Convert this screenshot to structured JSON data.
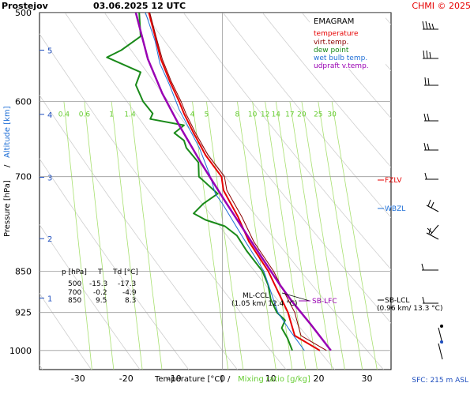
{
  "header": {
    "station": "Prostejov",
    "datetime": "03.06.2025 12 UTC",
    "credit": "CHMI © 2025"
  },
  "legend": {
    "title": "EMAGRAM",
    "items": [
      {
        "label": "temperature",
        "color": "#e60000"
      },
      {
        "label": "virt.temp.",
        "color": "#8b0000"
      },
      {
        "label": "dew point",
        "color": "#1a8a1a"
      },
      {
        "label": "wet bulb temp.",
        "color": "#1f6fd6"
      },
      {
        "label": "udpraft v.temp.",
        "color": "#9900b3"
      }
    ]
  },
  "axes": {
    "xlabel_main": "Temperature [°C]",
    "xlabel_sep": "/",
    "xlabel_mix": "Mixing ratio [g/kg]",
    "ylabel_pressure": "Pressure [hPa]",
    "ylabel_sep": "/",
    "ylabel_altitude": "Altitude [km]",
    "sfc_note": "SFC: 215 m ASL"
  },
  "table": {
    "header": [
      "p [hPa]",
      "T",
      "Td [°C]"
    ],
    "rows": [
      [
        "500",
        "-15.3",
        "-17.3"
      ],
      [
        "700",
        "-0.2",
        "-4.9"
      ],
      [
        "850",
        "9.5",
        "8.3"
      ]
    ]
  },
  "annotations": {
    "ml_ccl": "ML-CCL",
    "ml_ccl_sub": "(1.05 km/ 12.4 °C)",
    "sb_lfc": "SB-LFC",
    "sb_lcl": "SB-LCL",
    "sb_lcl_sub": "(0.96 km/ 13.3 °C)",
    "fzlv": "FZLV",
    "wbzl": "WBZL"
  },
  "chart_data": {
    "type": "line",
    "title": "EMAGRAM",
    "xlabel": "Temperature [°C]",
    "ylabel": "Pressure [hPa]",
    "xlim": [
      -38,
      35
    ],
    "ylim": [
      1040,
      500
    ],
    "y_scale": "log",
    "x_ticks": [
      -30,
      -20,
      -10,
      0,
      10,
      20,
      30
    ],
    "y_ticks": [
      500,
      600,
      700,
      850,
      925,
      1000
    ],
    "altitude_ticks": [
      {
        "km": 1,
        "p": 898
      },
      {
        "km": 2,
        "p": 795
      },
      {
        "km": 3,
        "p": 701
      },
      {
        "km": 4,
        "p": 616
      },
      {
        "km": 5,
        "p": 540
      }
    ],
    "mixing_ratio_labels": [
      "0.4",
      "0.6",
      "1",
      "1.4",
      "4",
      "5",
      "8",
      "10",
      "12",
      "14",
      "17",
      "20",
      "25",
      "30"
    ],
    "series": [
      {
        "name": "temperature",
        "color": "#e60000",
        "points": [
          [
            20.2,
            1000
          ],
          [
            15,
            970
          ],
          [
            13.6,
            925
          ],
          [
            9.5,
            850
          ],
          [
            5.5,
            800
          ],
          [
            3.2,
            760
          ],
          [
            0.2,
            720
          ],
          [
            -0.2,
            700
          ],
          [
            -3.5,
            670
          ],
          [
            -6,
            640
          ],
          [
            -8,
            615
          ],
          [
            -9,
            600
          ],
          [
            -11,
            575
          ],
          [
            -12.8,
            550
          ],
          [
            -14,
            525
          ],
          [
            -15.3,
            500
          ]
        ]
      },
      {
        "name": "virt.temp.",
        "color": "#8b0000",
        "points": [
          [
            21.6,
            1000
          ],
          [
            16.3,
            970
          ],
          [
            15,
            925
          ],
          [
            10.6,
            850
          ],
          [
            6.5,
            800
          ],
          [
            4,
            760
          ],
          [
            0.9,
            720
          ],
          [
            0.4,
            700
          ],
          [
            -3,
            670
          ],
          [
            -5.6,
            640
          ],
          [
            -7.6,
            615
          ],
          [
            -8.6,
            600
          ],
          [
            -10.7,
            575
          ],
          [
            -12.5,
            550
          ],
          [
            -13.8,
            525
          ],
          [
            -15.1,
            500
          ]
        ]
      },
      {
        "name": "dew point",
        "color": "#1a8a1a",
        "points": [
          [
            14.5,
            1000
          ],
          [
            13.5,
            975
          ],
          [
            12.3,
            955
          ],
          [
            13,
            940
          ],
          [
            11.3,
            925
          ],
          [
            10,
            900
          ],
          [
            9.5,
            875
          ],
          [
            8.3,
            850
          ],
          [
            5,
            815
          ],
          [
            3,
            790
          ],
          [
            0.5,
            775
          ],
          [
            -3.5,
            765
          ],
          [
            -6,
            755
          ],
          [
            -4,
            740
          ],
          [
            -1,
            725
          ],
          [
            -4.9,
            700
          ],
          [
            -5,
            680
          ],
          [
            -7.5,
            660
          ],
          [
            -8,
            650
          ],
          [
            -10,
            640
          ],
          [
            -8,
            630
          ],
          [
            -15,
            622
          ],
          [
            -14.5,
            615
          ],
          [
            -16.5,
            600
          ],
          [
            -18,
            580
          ],
          [
            -17,
            565
          ],
          [
            -24,
            548
          ],
          [
            -21,
            540
          ],
          [
            -17,
            525
          ],
          [
            -17.3,
            500
          ]
        ]
      },
      {
        "name": "wet bulb temp.",
        "color": "#1f6fd6",
        "points": [
          [
            17,
            1000
          ],
          [
            14,
            960
          ],
          [
            11.5,
            925
          ],
          [
            8.6,
            850
          ],
          [
            4,
            790
          ],
          [
            0,
            740
          ],
          [
            -1.5,
            725
          ],
          [
            -2.5,
            700
          ],
          [
            -4.8,
            660
          ],
          [
            -9,
            610
          ],
          [
            -11,
            580
          ],
          [
            -13,
            555
          ],
          [
            -14,
            530
          ],
          [
            -16,
            500
          ]
        ]
      },
      {
        "name": "udpraft v.temp.",
        "color": "#9900b3",
        "points": [
          [
            22.5,
            1000
          ],
          [
            18.5,
            950
          ],
          [
            14.5,
            905
          ],
          [
            12,
            875
          ],
          [
            6,
            800
          ],
          [
            0,
            730
          ],
          [
            -4.5,
            680
          ],
          [
            -9,
            630
          ],
          [
            -12.5,
            590
          ],
          [
            -15.5,
            550
          ],
          [
            -18,
            500
          ]
        ]
      }
    ]
  }
}
